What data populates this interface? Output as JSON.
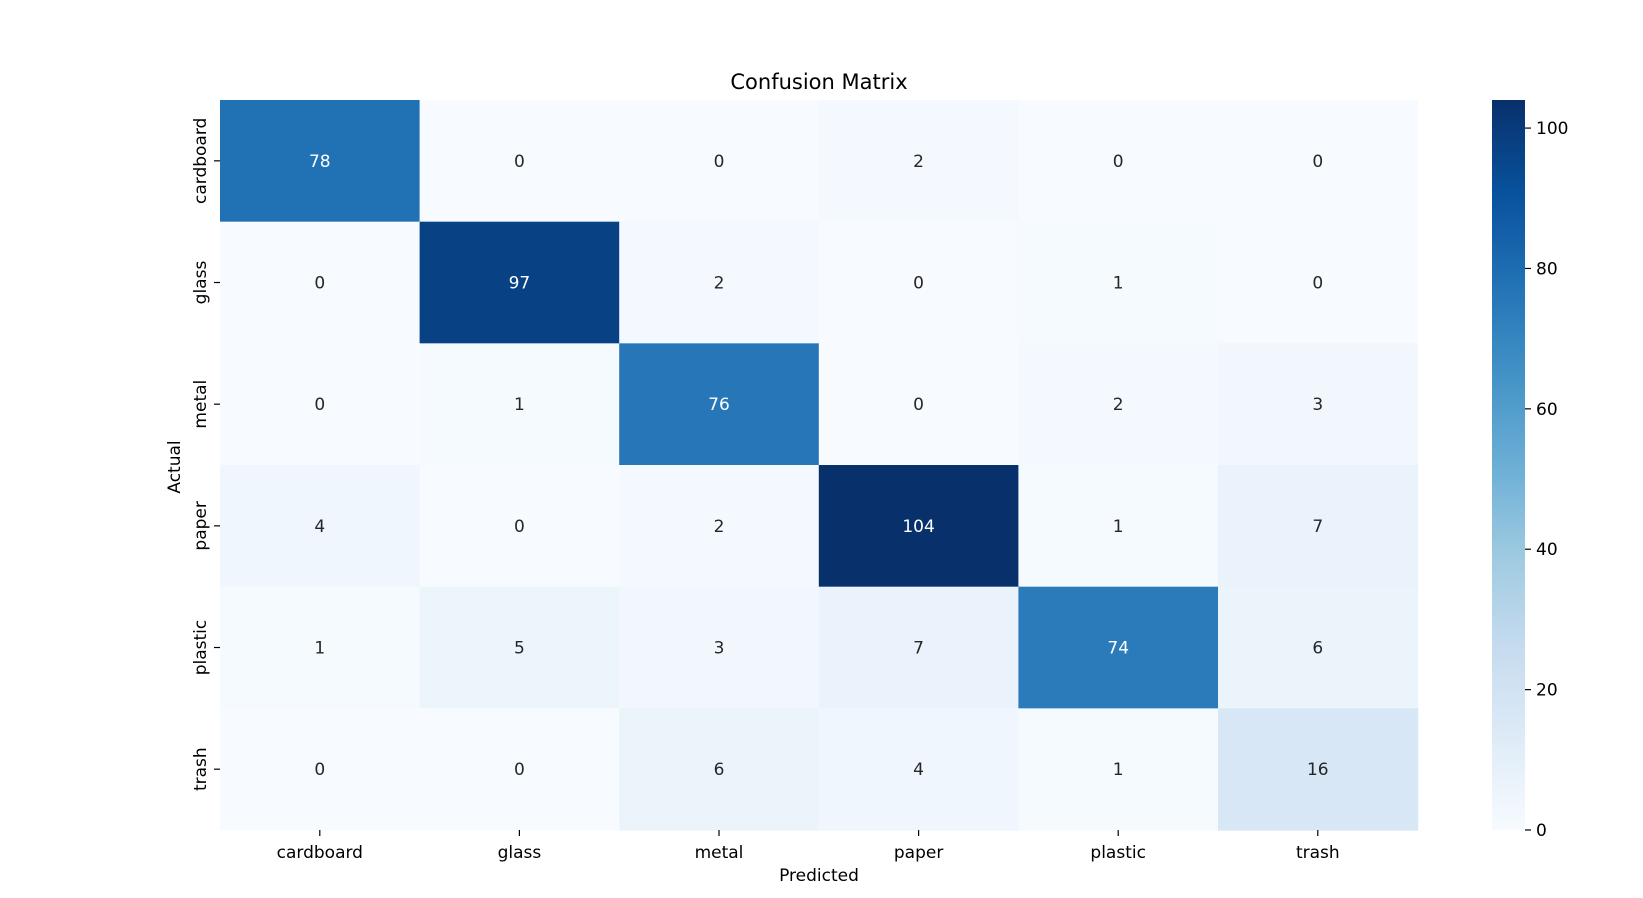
{
  "chart_data": {
    "type": "heatmap",
    "title": "Confusion Matrix",
    "xlabel": "Predicted",
    "ylabel": "Actual",
    "x_categories": [
      "cardboard",
      "glass",
      "metal",
      "paper",
      "plastic",
      "trash"
    ],
    "y_categories": [
      "cardboard",
      "glass",
      "metal",
      "paper",
      "plastic",
      "trash"
    ],
    "values": [
      [
        78,
        0,
        0,
        2,
        0,
        0
      ],
      [
        0,
        97,
        2,
        0,
        1,
        0
      ],
      [
        0,
        1,
        76,
        0,
        2,
        3
      ],
      [
        4,
        0,
        2,
        104,
        1,
        7
      ],
      [
        1,
        5,
        3,
        7,
        74,
        6
      ],
      [
        0,
        0,
        6,
        4,
        1,
        16
      ]
    ],
    "colormap": "Blues",
    "vmin": 0,
    "vmax": 104,
    "colorbar_ticks": [
      0,
      20,
      40,
      60,
      80,
      100
    ],
    "annotations": true
  }
}
